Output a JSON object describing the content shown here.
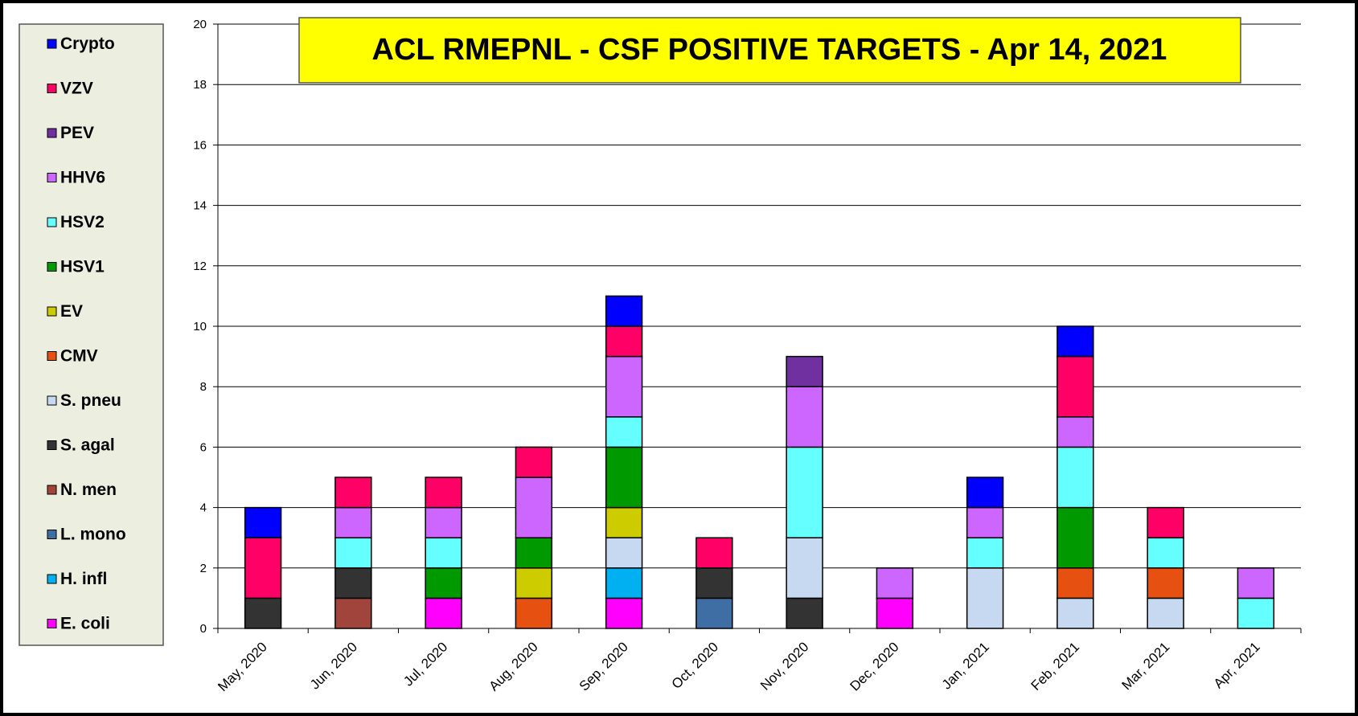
{
  "chart_data": {
    "type": "stacked_bar",
    "title": "ACL RMEPNL - CSF POSITIVE TARGETS - Apr 14, 2021",
    "categories": [
      "May, 2020",
      "Jun, 2020",
      "Jul, 2020",
      "Aug, 2020",
      "Sep, 2020",
      "Oct, 2020",
      "Nov, 2020",
      "Dec, 2020",
      "Jan, 2021",
      "Feb, 2021",
      "Mar, 2021",
      "Apr, 2021"
    ],
    "series": [
      {
        "name": "E. coli",
        "color": "#ff00ff",
        "values": [
          0,
          0,
          1,
          0,
          1,
          0,
          0,
          1,
          0,
          0,
          0,
          0
        ]
      },
      {
        "name": "H. infl",
        "color": "#00b0f0",
        "values": [
          0,
          0,
          0,
          0,
          1,
          0,
          0,
          0,
          0,
          0,
          0,
          0
        ]
      },
      {
        "name": "L. mono",
        "color": "#3f6ea4",
        "values": [
          0,
          0,
          0,
          0,
          0,
          1,
          0,
          0,
          0,
          0,
          0,
          0
        ]
      },
      {
        "name": "N. men",
        "color": "#a0443c",
        "values": [
          0,
          1,
          0,
          0,
          0,
          0,
          0,
          0,
          0,
          0,
          0,
          0
        ]
      },
      {
        "name": "S. agal",
        "color": "#333333",
        "values": [
          1,
          1,
          0,
          0,
          0,
          1,
          1,
          0,
          0,
          0,
          0,
          0
        ]
      },
      {
        "name": "S. pneu",
        "color": "#c6d9f0",
        "values": [
          0,
          0,
          0,
          0,
          1,
          0,
          2,
          0,
          2,
          1,
          1,
          0
        ]
      },
      {
        "name": "CMV",
        "color": "#e65010",
        "values": [
          0,
          0,
          0,
          1,
          0,
          0,
          0,
          0,
          0,
          1,
          1,
          0
        ]
      },
      {
        "name": "EV",
        "color": "#cccc00",
        "values": [
          0,
          0,
          0,
          1,
          1,
          0,
          0,
          0,
          0,
          0,
          0,
          0
        ]
      },
      {
        "name": "HSV1",
        "color": "#009900",
        "values": [
          0,
          0,
          1,
          1,
          2,
          0,
          0,
          0,
          0,
          2,
          0,
          0
        ]
      },
      {
        "name": "HSV2",
        "color": "#66ffff",
        "values": [
          0,
          1,
          1,
          0,
          1,
          0,
          3,
          0,
          1,
          2,
          1,
          1
        ]
      },
      {
        "name": "HHV6",
        "color": "#cc66ff",
        "values": [
          0,
          1,
          1,
          2,
          2,
          0,
          2,
          1,
          1,
          1,
          0,
          1
        ]
      },
      {
        "name": "PEV",
        "color": "#7030a0",
        "values": [
          0,
          0,
          0,
          0,
          0,
          0,
          1,
          0,
          0,
          0,
          0,
          0
        ]
      },
      {
        "name": "VZV",
        "color": "#ff0066",
        "values": [
          2,
          1,
          1,
          1,
          1,
          1,
          0,
          0,
          0,
          2,
          1,
          0
        ]
      },
      {
        "name": "Crypto",
        "color": "#0000ff",
        "values": [
          1,
          0,
          0,
          0,
          1,
          0,
          0,
          0,
          1,
          1,
          0,
          0
        ]
      }
    ],
    "ylim": [
      0,
      20
    ],
    "yticks": [
      0,
      2,
      4,
      6,
      8,
      10,
      12,
      14,
      16,
      18,
      20
    ],
    "grid": true
  }
}
